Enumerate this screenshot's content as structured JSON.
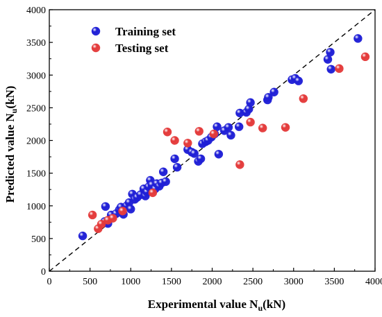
{
  "chart_data": {
    "type": "scatter",
    "xlabel": "Experimental value N",
    "xlabel_sub": "u",
    "xlabel_unit": "(kN)",
    "ylabel": "Predicted value N",
    "ylabel_sub": "u",
    "ylabel_unit": "(kN)",
    "xlim": [
      0,
      4000
    ],
    "ylim": [
      0,
      4000
    ],
    "xticks": [
      "0",
      "500",
      "1000",
      "1500",
      "2000",
      "2500",
      "3000",
      "3500",
      "4000"
    ],
    "yticks": [
      "0",
      "500",
      "1000",
      "1500",
      "2000",
      "2500",
      "3000",
      "3500",
      "4000"
    ],
    "grid": false,
    "legend_position": "top-left",
    "reference_line": {
      "type": "y=x",
      "style": "dashed",
      "color": "#000000"
    },
    "series": [
      {
        "name": "Training set",
        "color": "#1f1fd6",
        "points": [
          [
            410,
            540
          ],
          [
            680,
            760
          ],
          [
            690,
            990
          ],
          [
            720,
            730
          ],
          [
            760,
            860
          ],
          [
            820,
            880
          ],
          [
            860,
            940
          ],
          [
            880,
            980
          ],
          [
            910,
            870
          ],
          [
            950,
            1000
          ],
          [
            980,
            1050
          ],
          [
            1000,
            950
          ],
          [
            1020,
            1180
          ],
          [
            1050,
            1100
          ],
          [
            1080,
            1130
          ],
          [
            1120,
            1170
          ],
          [
            1160,
            1260
          ],
          [
            1180,
            1150
          ],
          [
            1200,
            1210
          ],
          [
            1220,
            1290
          ],
          [
            1240,
            1390
          ],
          [
            1260,
            1320
          ],
          [
            1300,
            1260
          ],
          [
            1320,
            1340
          ],
          [
            1350,
            1300
          ],
          [
            1380,
            1350
          ],
          [
            1400,
            1520
          ],
          [
            1430,
            1370
          ],
          [
            1540,
            1720
          ],
          [
            1570,
            1590
          ],
          [
            1700,
            1860
          ],
          [
            1750,
            1820
          ],
          [
            1780,
            1800
          ],
          [
            1830,
            1680
          ],
          [
            1860,
            1720
          ],
          [
            1880,
            1950
          ],
          [
            1920,
            1980
          ],
          [
            1950,
            2000
          ],
          [
            1990,
            2050
          ],
          [
            2030,
            2100
          ],
          [
            2060,
            2210
          ],
          [
            2080,
            1790
          ],
          [
            2150,
            2150
          ],
          [
            2200,
            2200
          ],
          [
            2230,
            2080
          ],
          [
            2330,
            2210
          ],
          [
            2340,
            2420
          ],
          [
            2420,
            2430
          ],
          [
            2450,
            2480
          ],
          [
            2470,
            2580
          ],
          [
            2680,
            2620
          ],
          [
            2690,
            2660
          ],
          [
            2760,
            2740
          ],
          [
            2980,
            2930
          ],
          [
            3020,
            2950
          ],
          [
            3060,
            2910
          ],
          [
            3420,
            3240
          ],
          [
            3450,
            3350
          ],
          [
            3460,
            3090
          ],
          [
            3790,
            3560
          ]
        ]
      },
      {
        "name": "Testing set",
        "color": "#e43a3a",
        "points": [
          [
            530,
            860
          ],
          [
            600,
            650
          ],
          [
            640,
            720
          ],
          [
            720,
            780
          ],
          [
            780,
            810
          ],
          [
            900,
            920
          ],
          [
            1270,
            1200
          ],
          [
            1450,
            2130
          ],
          [
            1540,
            2000
          ],
          [
            1700,
            1960
          ],
          [
            1840,
            2140
          ],
          [
            2020,
            2100
          ],
          [
            2340,
            1630
          ],
          [
            2470,
            2280
          ],
          [
            2620,
            2190
          ],
          [
            2900,
            2200
          ],
          [
            3120,
            2640
          ],
          [
            3560,
            3100
          ],
          [
            3880,
            3280
          ]
        ]
      }
    ]
  }
}
